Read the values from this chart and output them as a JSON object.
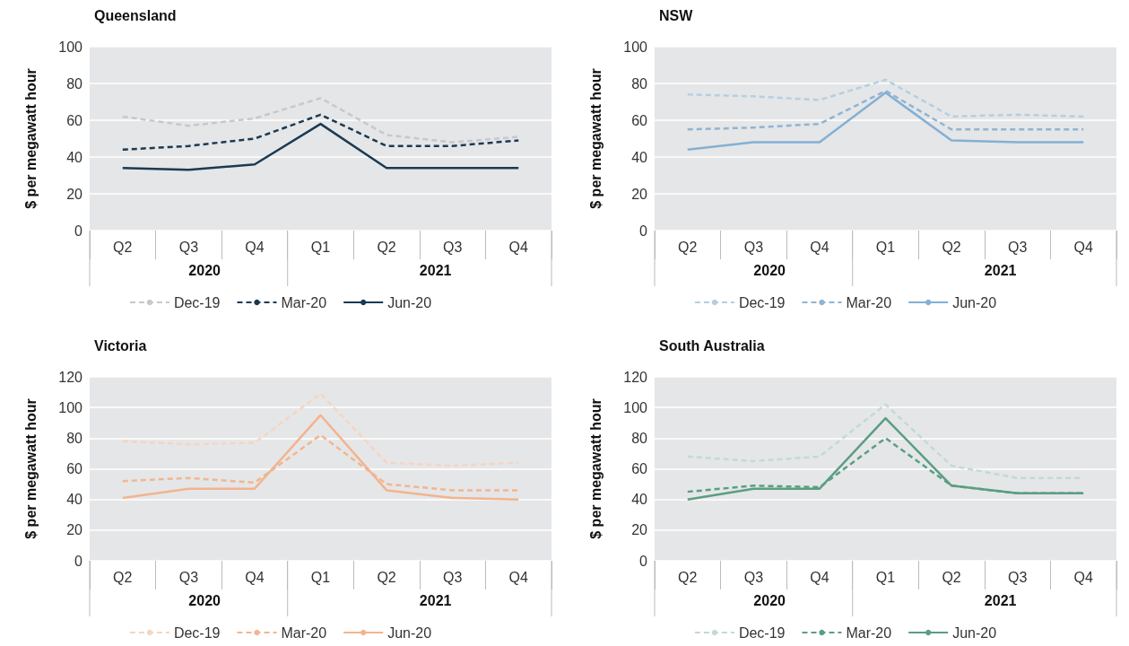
{
  "chart_data": [
    {
      "type": "line",
      "title": "Queensland",
      "ylabel": "$ per megawatt hour",
      "categories": [
        "Q2",
        "Q3",
        "Q4",
        "Q1",
        "Q2",
        "Q3",
        "Q4"
      ],
      "annotations": [
        "2020",
        "2021"
      ],
      "ylim": [
        0,
        100
      ],
      "yticks": [
        0,
        20,
        40,
        60,
        80,
        100
      ],
      "grid": "y",
      "legend": "bottom",
      "marker": "none",
      "series": [
        {
          "name": "Dec-19",
          "color": "#c8c8cc",
          "line_style": "dashed",
          "values": [
            62,
            57,
            61,
            72,
            52,
            48,
            51
          ]
        },
        {
          "name": "Mar-20",
          "color": "#1b3a52",
          "line_style": "dashed",
          "values": [
            44,
            46,
            50,
            63,
            46,
            46,
            49
          ]
        },
        {
          "name": "Jun-20",
          "color": "#1b3a52",
          "line_style": "solid",
          "values": [
            34,
            33,
            36,
            58,
            34,
            34,
            34
          ]
        }
      ]
    },
    {
      "type": "line",
      "title": "NSW",
      "ylabel": "$ per megawatt hour",
      "categories": [
        "Q2",
        "Q3",
        "Q4",
        "Q1",
        "Q2",
        "Q3",
        "Q4"
      ],
      "annotations": [
        "2020",
        "2021"
      ],
      "ylim": [
        0,
        100
      ],
      "yticks": [
        0,
        20,
        40,
        60,
        80,
        100
      ],
      "grid": "y",
      "legend": "bottom",
      "marker": "none",
      "series": [
        {
          "name": "Dec-19",
          "color": "#b5cfe0",
          "line_style": "dashed",
          "values": [
            74,
            73,
            71,
            82,
            62,
            63,
            62
          ]
        },
        {
          "name": "Mar-20",
          "color": "#8fb4d2",
          "line_style": "dashed",
          "values": [
            55,
            56,
            58,
            76,
            55,
            55,
            55
          ]
        },
        {
          "name": "Jun-20",
          "color": "#84b0d3",
          "line_style": "solid",
          "values": [
            44,
            48,
            48,
            75,
            49,
            48,
            48
          ]
        }
      ]
    },
    {
      "type": "line",
      "title": "Victoria",
      "ylabel": "$ per megawatt hour",
      "categories": [
        "Q2",
        "Q3",
        "Q4",
        "Q1",
        "Q2",
        "Q3",
        "Q4"
      ],
      "annotations": [
        "2020",
        "2021"
      ],
      "ylim": [
        0,
        120
      ],
      "yticks": [
        0,
        20,
        40,
        60,
        80,
        100,
        120
      ],
      "grid": "y",
      "legend": "bottom",
      "marker": "none",
      "series": [
        {
          "name": "Dec-19",
          "color": "#f5d5c2",
          "line_style": "dashed",
          "values": [
            78,
            76,
            77,
            109,
            64,
            62,
            64
          ]
        },
        {
          "name": "Mar-20",
          "color": "#f2b690",
          "line_style": "dashed",
          "values": [
            52,
            54,
            51,
            82,
            50,
            46,
            46
          ]
        },
        {
          "name": "Jun-20",
          "color": "#f2b48e",
          "line_style": "solid",
          "values": [
            41,
            47,
            47,
            95,
            46,
            41,
            40
          ]
        }
      ]
    },
    {
      "type": "line",
      "title": "South Australia",
      "ylabel": "$ per megawatt hour",
      "categories": [
        "Q2",
        "Q3",
        "Q4",
        "Q1",
        "Q2",
        "Q3",
        "Q4"
      ],
      "annotations": [
        "2020",
        "2021"
      ],
      "ylim": [
        0,
        120
      ],
      "yticks": [
        0,
        20,
        40,
        60,
        80,
        100,
        120
      ],
      "grid": "y",
      "legend": "bottom",
      "marker": "none",
      "series": [
        {
          "name": "Dec-19",
          "color": "#c2dbd0",
          "line_style": "dashed",
          "values": [
            68,
            65,
            68,
            102,
            62,
            54,
            54
          ]
        },
        {
          "name": "Mar-20",
          "color": "#5a9e82",
          "line_style": "dashed",
          "values": [
            45,
            49,
            48,
            80,
            49,
            44,
            44
          ]
        },
        {
          "name": "Jun-20",
          "color": "#5a9e82",
          "line_style": "solid",
          "values": [
            40,
            47,
            47,
            93,
            49,
            44,
            44
          ]
        }
      ]
    }
  ]
}
